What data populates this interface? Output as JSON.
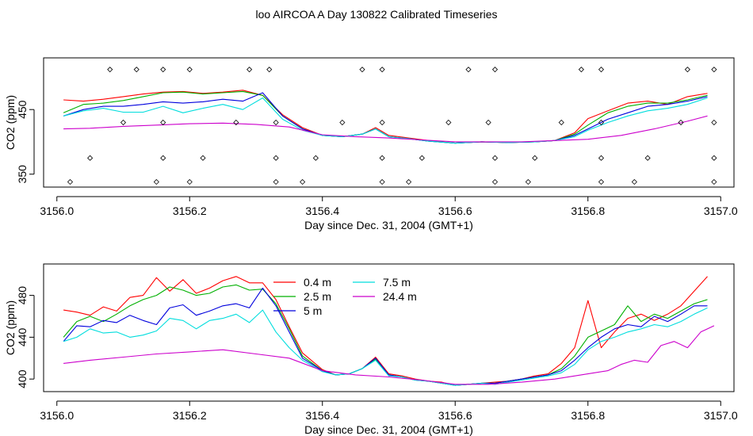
{
  "title": "loo AIRCOA A  Day 130822  Calibrated Timeseries",
  "chart_data": [
    {
      "type": "line",
      "panel": "top",
      "xlabel": "Day since Dec. 31, 2004 (GMT+1)",
      "ylabel": "CO2 (ppm)",
      "xlim": [
        3155.98,
        3157.02
      ],
      "ylim": [
        330,
        530
      ],
      "xticks": [
        3156.0,
        3156.2,
        3156.4,
        3156.6,
        3156.8,
        3157.0
      ],
      "xtick_labels": [
        "3156.0",
        "3156.2",
        "3156.4",
        "3156.6",
        "3156.8",
        "3157.0"
      ],
      "yticks": [
        350,
        450
      ],
      "ytick_labels": [
        "350",
        "450"
      ],
      "series": [
        {
          "color": "#ff0000",
          "x": [
            3156.01,
            3156.04,
            3156.07,
            3156.1,
            3156.13,
            3156.16,
            3156.19,
            3156.22,
            3156.25,
            3156.28,
            3156.31,
            3156.34,
            3156.37,
            3156.4,
            3156.43,
            3156.46,
            3156.48,
            3156.5,
            3156.53,
            3156.56,
            3156.6,
            3156.64,
            3156.68,
            3156.72,
            3156.75,
            3156.78,
            3156.8,
            3156.83,
            3156.86,
            3156.89,
            3156.92,
            3156.95,
            3156.98
          ],
          "y": [
            465,
            463,
            466,
            470,
            474,
            477,
            478,
            475,
            477,
            480,
            472,
            442,
            422,
            410,
            408,
            412,
            422,
            410,
            406,
            402,
            398,
            400,
            399,
            400,
            402,
            414,
            436,
            448,
            460,
            463,
            458,
            470,
            475
          ]
        },
        {
          "color": "#00b000",
          "x": [
            3156.01,
            3156.04,
            3156.07,
            3156.1,
            3156.13,
            3156.16,
            3156.19,
            3156.22,
            3156.25,
            3156.28,
            3156.31,
            3156.34,
            3156.37,
            3156.4,
            3156.43,
            3156.46,
            3156.48,
            3156.5,
            3156.53,
            3156.56,
            3156.6,
            3156.64,
            3156.68,
            3156.72,
            3156.75,
            3156.78,
            3156.8,
            3156.83,
            3156.86,
            3156.89,
            3156.92,
            3156.95,
            3156.98
          ],
          "y": [
            445,
            458,
            460,
            464,
            470,
            476,
            477,
            474,
            476,
            478,
            472,
            440,
            420,
            410,
            408,
            412,
            420,
            408,
            405,
            401,
            398,
            400,
            399,
            400,
            402,
            412,
            426,
            445,
            455,
            460,
            460,
            465,
            472
          ]
        },
        {
          "color": "#0000dd",
          "x": [
            3156.01,
            3156.04,
            3156.07,
            3156.1,
            3156.13,
            3156.16,
            3156.19,
            3156.22,
            3156.25,
            3156.28,
            3156.31,
            3156.34,
            3156.37,
            3156.4,
            3156.43,
            3156.46,
            3156.48,
            3156.5,
            3156.53,
            3156.56,
            3156.6,
            3156.64,
            3156.68,
            3156.72,
            3156.75,
            3156.78,
            3156.8,
            3156.83,
            3156.86,
            3156.89,
            3156.92,
            3156.95,
            3156.98
          ],
          "y": [
            440,
            450,
            455,
            455,
            458,
            462,
            460,
            462,
            466,
            463,
            476,
            440,
            420,
            410,
            408,
            412,
            420,
            408,
            405,
            401,
            398,
            400,
            399,
            400,
            402,
            410,
            420,
            435,
            445,
            455,
            458,
            463,
            470
          ]
        },
        {
          "color": "#00dddd",
          "x": [
            3156.01,
            3156.04,
            3156.07,
            3156.1,
            3156.13,
            3156.16,
            3156.19,
            3156.22,
            3156.25,
            3156.28,
            3156.31,
            3156.34,
            3156.37,
            3156.4,
            3156.43,
            3156.46,
            3156.48,
            3156.5,
            3156.53,
            3156.56,
            3156.6,
            3156.64,
            3156.68,
            3156.72,
            3156.75,
            3156.78,
            3156.8,
            3156.83,
            3156.86,
            3156.89,
            3156.92,
            3156.95,
            3156.98
          ],
          "y": [
            440,
            448,
            452,
            446,
            446,
            455,
            445,
            452,
            458,
            450,
            468,
            435,
            418,
            410,
            408,
            412,
            420,
            408,
            405,
            401,
            398,
            400,
            399,
            400,
            402,
            408,
            418,
            430,
            440,
            448,
            452,
            458,
            468
          ]
        },
        {
          "color": "#cc00cc",
          "x": [
            3156.01,
            3156.05,
            3156.1,
            3156.15,
            3156.2,
            3156.25,
            3156.3,
            3156.35,
            3156.4,
            3156.45,
            3156.5,
            3156.55,
            3156.6,
            3156.65,
            3156.7,
            3156.75,
            3156.8,
            3156.85,
            3156.9,
            3156.95,
            3156.98
          ],
          "y": [
            420,
            421,
            424,
            426,
            428,
            429,
            427,
            423,
            411,
            408,
            406,
            403,
            400,
            400,
            400,
            402,
            404,
            410,
            420,
            432,
            440
          ]
        }
      ],
      "points": {
        "x": [
          3156.08,
          3156.12,
          3156.16,
          3156.2,
          3156.29,
          3156.32,
          3156.46,
          3156.49,
          3156.62,
          3156.66,
          3156.79,
          3156.82,
          3156.95,
          3156.99,
          3156.1,
          3156.16,
          3156.27,
          3156.33,
          3156.43,
          3156.49,
          3156.59,
          3156.65,
          3156.76,
          3156.82,
          3156.94,
          3156.99,
          3156.05,
          3156.16,
          3156.22,
          3156.33,
          3156.39,
          3156.49,
          3156.55,
          3156.66,
          3156.72,
          3156.82,
          3156.89,
          3156.99,
          3156.02,
          3156.15,
          3156.2,
          3156.33,
          3156.37,
          3156.49,
          3156.53,
          3156.66,
          3156.71,
          3156.82,
          3156.87,
          3156.99
        ],
        "y": [
          512,
          512,
          512,
          512,
          512,
          512,
          512,
          512,
          512,
          512,
          512,
          512,
          512,
          512,
          430,
          430,
          430,
          430,
          430,
          430,
          430,
          430,
          430,
          430,
          430,
          430,
          375,
          375,
          375,
          375,
          375,
          375,
          375,
          375,
          375,
          375,
          375,
          375,
          338,
          338,
          338,
          338,
          338,
          338,
          338,
          338,
          338,
          338,
          338,
          338
        ]
      }
    },
    {
      "type": "line",
      "panel": "bottom",
      "xlabel": "Day since Dec. 31, 2004 (GMT+1)",
      "ylabel": "CO2 (ppm)",
      "xlim": [
        3155.98,
        3157.02
      ],
      "ylim": [
        388,
        510
      ],
      "xticks": [
        3156.0,
        3156.2,
        3156.4,
        3156.6,
        3156.8,
        3157.0
      ],
      "xtick_labels": [
        "3156.0",
        "3156.2",
        "3156.4",
        "3156.6",
        "3156.8",
        "3157.0"
      ],
      "yticks": [
        400,
        440,
        480
      ],
      "ytick_labels": [
        "400",
        "440",
        "480"
      ],
      "legend": {
        "position": "inside-top",
        "entries": [
          {
            "label": "0.4 m",
            "color": "#ff0000"
          },
          {
            "label": "2.5 m",
            "color": "#00b000"
          },
          {
            "label": "5 m",
            "color": "#0000dd"
          },
          {
            "label": "7.5 m",
            "color": "#00dddd"
          },
          {
            "label": "24.4 m",
            "color": "#cc00cc"
          }
        ]
      },
      "series": [
        {
          "name": "0.4 m",
          "color": "#ff0000",
          "x": [
            3156.01,
            3156.03,
            3156.05,
            3156.07,
            3156.09,
            3156.11,
            3156.13,
            3156.15,
            3156.17,
            3156.19,
            3156.21,
            3156.23,
            3156.25,
            3156.27,
            3156.29,
            3156.31,
            3156.33,
            3156.35,
            3156.37,
            3156.4,
            3156.42,
            3156.44,
            3156.46,
            3156.48,
            3156.5,
            3156.52,
            3156.54,
            3156.56,
            3156.58,
            3156.6,
            3156.62,
            3156.64,
            3156.66,
            3156.68,
            3156.7,
            3156.72,
            3156.74,
            3156.76,
            3156.78,
            3156.8,
            3156.82,
            3156.84,
            3156.86,
            3156.88,
            3156.9,
            3156.92,
            3156.94,
            3156.96,
            3156.98
          ],
          "y": [
            466,
            464,
            461,
            469,
            465,
            478,
            480,
            497,
            484,
            495,
            482,
            487,
            494,
            498,
            492,
            492,
            476,
            450,
            425,
            409,
            404,
            405,
            410,
            421,
            405,
            403,
            400,
            398,
            397,
            394,
            395,
            396,
            397,
            398,
            400,
            403,
            405,
            415,
            430,
            475,
            430,
            445,
            458,
            462,
            456,
            462,
            470,
            484,
            498
          ]
        },
        {
          "name": "2.5 m",
          "color": "#00b000",
          "x": [
            3156.01,
            3156.03,
            3156.05,
            3156.07,
            3156.09,
            3156.11,
            3156.13,
            3156.15,
            3156.17,
            3156.19,
            3156.21,
            3156.23,
            3156.25,
            3156.27,
            3156.29,
            3156.31,
            3156.33,
            3156.35,
            3156.37,
            3156.4,
            3156.42,
            3156.44,
            3156.46,
            3156.48,
            3156.5,
            3156.52,
            3156.54,
            3156.56,
            3156.58,
            3156.6,
            3156.62,
            3156.64,
            3156.66,
            3156.68,
            3156.7,
            3156.72,
            3156.74,
            3156.76,
            3156.78,
            3156.8,
            3156.82,
            3156.84,
            3156.86,
            3156.88,
            3156.9,
            3156.92,
            3156.94,
            3156.96,
            3156.98
          ],
          "y": [
            440,
            455,
            460,
            455,
            462,
            470,
            476,
            480,
            488,
            485,
            480,
            482,
            488,
            490,
            485,
            486,
            472,
            448,
            422,
            408,
            404,
            405,
            410,
            419,
            404,
            402,
            399,
            398,
            396,
            394,
            395,
            396,
            396,
            398,
            400,
            402,
            404,
            410,
            422,
            440,
            446,
            452,
            470,
            455,
            462,
            458,
            465,
            472,
            476
          ]
        },
        {
          "name": "5 m",
          "color": "#0000dd",
          "x": [
            3156.01,
            3156.03,
            3156.05,
            3156.07,
            3156.09,
            3156.11,
            3156.13,
            3156.15,
            3156.17,
            3156.19,
            3156.21,
            3156.23,
            3156.25,
            3156.27,
            3156.29,
            3156.31,
            3156.33,
            3156.35,
            3156.37,
            3156.4,
            3156.42,
            3156.44,
            3156.46,
            3156.48,
            3156.5,
            3156.52,
            3156.54,
            3156.56,
            3156.58,
            3156.6,
            3156.62,
            3156.64,
            3156.66,
            3156.68,
            3156.7,
            3156.72,
            3156.74,
            3156.76,
            3156.78,
            3156.8,
            3156.82,
            3156.84,
            3156.86,
            3156.88,
            3156.9,
            3156.92,
            3156.94,
            3156.96,
            3156.98
          ],
          "y": [
            436,
            451,
            450,
            456,
            454,
            461,
            456,
            452,
            468,
            471,
            461,
            465,
            470,
            472,
            468,
            487,
            470,
            445,
            420,
            408,
            404,
            405,
            410,
            420,
            404,
            402,
            399,
            398,
            396,
            394,
            395,
            396,
            396,
            398,
            400,
            402,
            404,
            408,
            418,
            430,
            440,
            448,
            452,
            450,
            460,
            455,
            462,
            470,
            470
          ]
        },
        {
          "name": "7.5 m",
          "color": "#00dddd",
          "x": [
            3156.01,
            3156.03,
            3156.05,
            3156.07,
            3156.09,
            3156.11,
            3156.13,
            3156.15,
            3156.17,
            3156.19,
            3156.21,
            3156.23,
            3156.25,
            3156.27,
            3156.29,
            3156.31,
            3156.33,
            3156.35,
            3156.37,
            3156.4,
            3156.42,
            3156.44,
            3156.46,
            3156.48,
            3156.5,
            3156.52,
            3156.54,
            3156.56,
            3156.58,
            3156.6,
            3156.62,
            3156.64,
            3156.66,
            3156.68,
            3156.7,
            3156.72,
            3156.74,
            3156.76,
            3156.78,
            3156.8,
            3156.82,
            3156.84,
            3156.86,
            3156.88,
            3156.9,
            3156.92,
            3156.94,
            3156.96,
            3156.98
          ],
          "y": [
            436,
            440,
            448,
            444,
            445,
            440,
            442,
            446,
            458,
            456,
            448,
            456,
            458,
            462,
            454,
            466,
            445,
            430,
            418,
            407,
            404,
            405,
            410,
            418,
            403,
            402,
            399,
            398,
            396,
            394,
            395,
            396,
            395,
            397,
            399,
            401,
            403,
            406,
            414,
            428,
            436,
            440,
            445,
            448,
            452,
            450,
            455,
            462,
            468
          ]
        },
        {
          "name": "24.4 m",
          "color": "#cc00cc",
          "x": [
            3156.01,
            3156.05,
            3156.1,
            3156.15,
            3156.2,
            3156.25,
            3156.3,
            3156.35,
            3156.4,
            3156.45,
            3156.5,
            3156.55,
            3156.6,
            3156.65,
            3156.7,
            3156.75,
            3156.8,
            3156.83,
            3156.85,
            3156.87,
            3156.89,
            3156.91,
            3156.93,
            3156.95,
            3156.97,
            3156.99
          ],
          "y": [
            415,
            418,
            421,
            424,
            426,
            428,
            424,
            420,
            408,
            404,
            402,
            399,
            395,
            395,
            397,
            400,
            405,
            408,
            414,
            418,
            416,
            432,
            436,
            430,
            445,
            451
          ]
        }
      ]
    }
  ]
}
